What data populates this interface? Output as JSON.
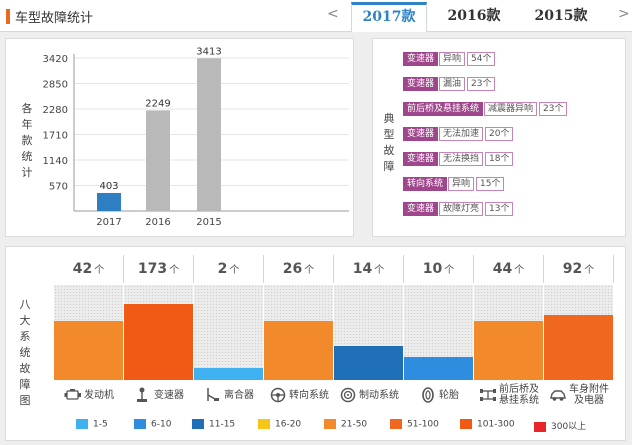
{
  "header": {
    "title": "车型故障统计",
    "prev_icon": "chevron-left-icon",
    "next_icon": "chevron-right-icon",
    "prev_glyph": "<",
    "next_glyph": ">",
    "tabs": [
      {
        "label": "2017款",
        "active": true
      },
      {
        "label": "2016款",
        "active": false
      },
      {
        "label": "2015款",
        "active": false
      }
    ]
  },
  "yearly_chart": {
    "side_label": [
      "各",
      "年",
      "款",
      "统",
      "计"
    ],
    "chart_data": {
      "type": "bar",
      "categories": [
        "2017",
        "2016",
        "2015"
      ],
      "values": [
        403,
        2249,
        3413
      ],
      "colors": [
        "#2d7fc2",
        "#b9b9b9",
        "#b9b9b9"
      ],
      "yticks": [
        570,
        1140,
        1710,
        2280,
        2850,
        3420
      ],
      "ylim": [
        0,
        3420
      ],
      "grid": true
    }
  },
  "typical_faults": {
    "side_label": [
      "典",
      "型",
      "故",
      "障"
    ],
    "items": [
      {
        "system": "变速器",
        "desc": "异响",
        "count": "54个"
      },
      {
        "system": "变速器",
        "desc": "漏油",
        "count": "23个"
      },
      {
        "system": "前后桥及悬挂系统",
        "desc": "减震器异响",
        "count": "23个"
      },
      {
        "system": "变速器",
        "desc": "无法加速",
        "count": "20个"
      },
      {
        "system": "变速器",
        "desc": "无法换挡",
        "count": "18个"
      },
      {
        "system": "转向系统",
        "desc": "异响",
        "count": "15个"
      },
      {
        "system": "变速器",
        "desc": "故障灯亮",
        "count": "13个"
      }
    ]
  },
  "systems": {
    "side_label": [
      "八",
      "大",
      "系",
      "统",
      "故",
      "障",
      "图"
    ],
    "unit": "个",
    "items": [
      {
        "count": "42",
        "label": [
          "发动机"
        ],
        "icon": "engine-icon",
        "fill_fraction": 0.62,
        "color": "#f28a2b"
      },
      {
        "count": "173",
        "label": [
          "变速器"
        ],
        "icon": "gear-shift-icon",
        "fill_fraction": 0.8,
        "color": "#f05a14"
      },
      {
        "count": "2",
        "label": [
          "离合器"
        ],
        "icon": "clutch-pedal-icon",
        "fill_fraction": 0.13,
        "color": "#3fb1f0"
      },
      {
        "count": "26",
        "label": [
          "转向系统"
        ],
        "icon": "steering-wheel-icon",
        "fill_fraction": 0.62,
        "color": "#f28a2b"
      },
      {
        "count": "14",
        "label": [
          "制动系统"
        ],
        "icon": "brake-icon",
        "fill_fraction": 0.36,
        "color": "#1f6fb8"
      },
      {
        "count": "10",
        "label": [
          "轮胎"
        ],
        "icon": "tire-icon",
        "fill_fraction": 0.24,
        "color": "#2f8de0"
      },
      {
        "count": "44",
        "label": [
          "前后桥及",
          "悬挂系统"
        ],
        "icon": "suspension-icon",
        "fill_fraction": 0.62,
        "color": "#f28a2b"
      },
      {
        "count": "92",
        "label": [
          "车身附件",
          "及电器"
        ],
        "icon": "car-body-icon",
        "fill_fraction": 0.68,
        "color": "#f06820"
      }
    ],
    "legend": [
      {
        "label": "1-5",
        "color": "#3fb1f0"
      },
      {
        "label": "6-10",
        "color": "#2f8de0"
      },
      {
        "label": "11-15",
        "color": "#1f6fb8"
      },
      {
        "label": "16-20",
        "color": "#f5c518"
      },
      {
        "label": "21-50",
        "color": "#f28a2b"
      },
      {
        "label": "51-100",
        "color": "#f06820"
      },
      {
        "label": "101-300",
        "color": "#f05a14"
      },
      {
        "label": "300以上",
        "color": "#e8262a"
      }
    ]
  }
}
